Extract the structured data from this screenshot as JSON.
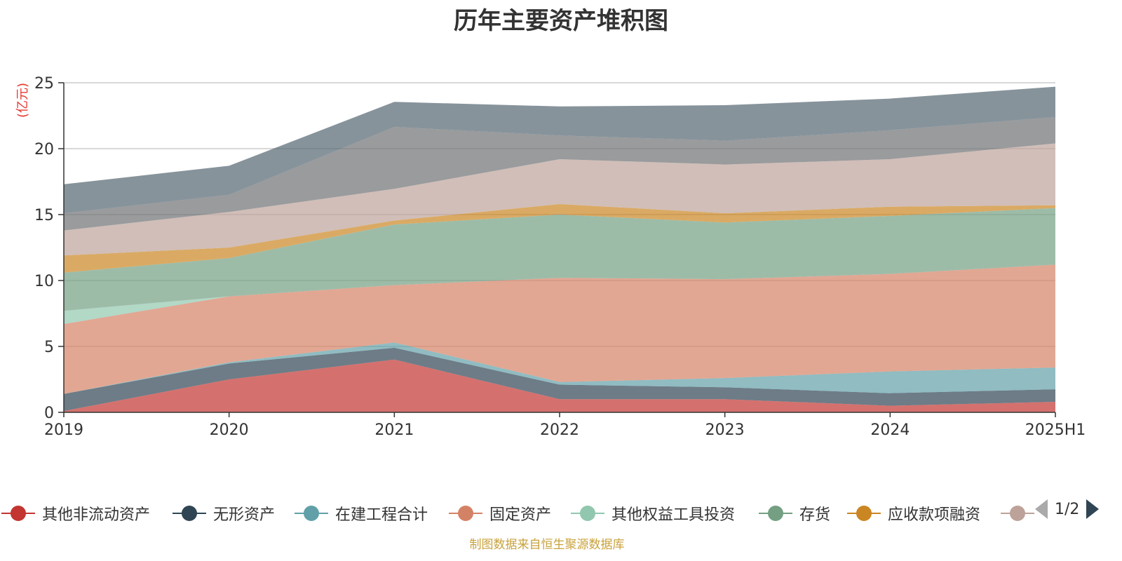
{
  "title": "历年主要资产堆积图",
  "source_note": "制图数据来自恒生聚源数据库",
  "legend_page": "1/2",
  "chart_data": {
    "type": "area",
    "stacked": true,
    "title": "历年主要资产堆积图",
    "ylabel": "(亿元)",
    "ylim": [
      0,
      25
    ],
    "yticks": [
      0,
      5,
      10,
      15,
      20,
      25
    ],
    "grid": true,
    "legend_placement": "bottom",
    "categories": [
      "2019",
      "2020",
      "2021",
      "2022",
      "2023",
      "2024",
      "2025H1"
    ],
    "series": [
      {
        "name": "其他非流动资产",
        "color": "#c23531",
        "values": [
          0.1,
          2.5,
          4.0,
          1.0,
          1.0,
          0.5,
          0.8
        ],
        "legend_visible": true
      },
      {
        "name": "无形资产",
        "color": "#2f4554",
        "values": [
          1.3,
          1.2,
          0.9,
          1.1,
          0.9,
          0.95,
          0.95
        ],
        "legend_visible": true
      },
      {
        "name": "在建工程合计",
        "color": "#61a0a8",
        "values": [
          0.0,
          0.1,
          0.4,
          0.2,
          0.7,
          1.65,
          1.65
        ],
        "legend_visible": true
      },
      {
        "name": "固定资产",
        "color": "#d48265",
        "values": [
          5.3,
          5.0,
          4.35,
          7.9,
          7.5,
          7.4,
          7.8
        ],
        "legend_visible": true
      },
      {
        "name": "其他权益工具投资",
        "color": "#91c7ae",
        "values": [
          1.0,
          0.0,
          0.0,
          0.0,
          0.0,
          0.0,
          0.0
        ],
        "legend_visible": true
      },
      {
        "name": "存货",
        "color": "#749f83",
        "values": [
          2.9,
          2.9,
          4.6,
          4.8,
          4.3,
          4.4,
          4.3
        ],
        "legend_visible": true
      },
      {
        "name": "应收款项融资",
        "color": "#ca8622",
        "values": [
          1.3,
          0.8,
          0.3,
          0.8,
          0.7,
          0.7,
          0.2
        ],
        "legend_visible": true
      },
      {
        "name": "",
        "color": "#bda29a",
        "values": [
          1.9,
          2.7,
          2.4,
          3.4,
          3.7,
          3.6,
          4.7
        ],
        "legend_visible": false
      },
      {
        "name": "",
        "color": "#6e7074",
        "values": [
          1.3,
          1.3,
          4.7,
          1.8,
          1.8,
          2.2,
          2.0
        ],
        "legend_visible": false
      },
      {
        "name": "",
        "color": "#546570",
        "values": [
          2.2,
          2.2,
          1.9,
          2.2,
          2.7,
          2.4,
          2.3
        ],
        "legend_visible": false
      }
    ]
  }
}
